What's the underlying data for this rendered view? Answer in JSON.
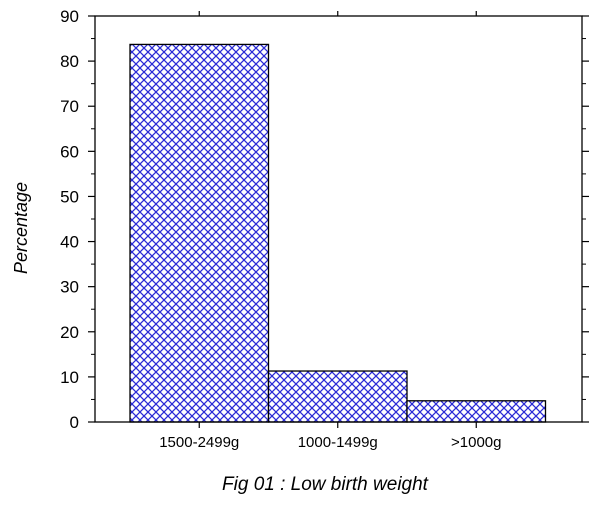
{
  "chart_data": {
    "type": "bar",
    "categories": [
      "1500-2499g",
      "1000-1499g",
      ">1000g"
    ],
    "values": [
      83.7,
      11.3,
      4.7
    ],
    "xlabel": "",
    "ylabel": "Percentage",
    "caption": "Fig 01 : Low birth weight",
    "ylim": [
      0,
      90
    ],
    "yticks": [
      0,
      10,
      20,
      30,
      40,
      50,
      60,
      70,
      80,
      90
    ],
    "grid": false,
    "legend": "none",
    "bar_fill": "#2b2bd6",
    "bar_pattern": "crosshatch",
    "bar_stroke": "#000000"
  }
}
